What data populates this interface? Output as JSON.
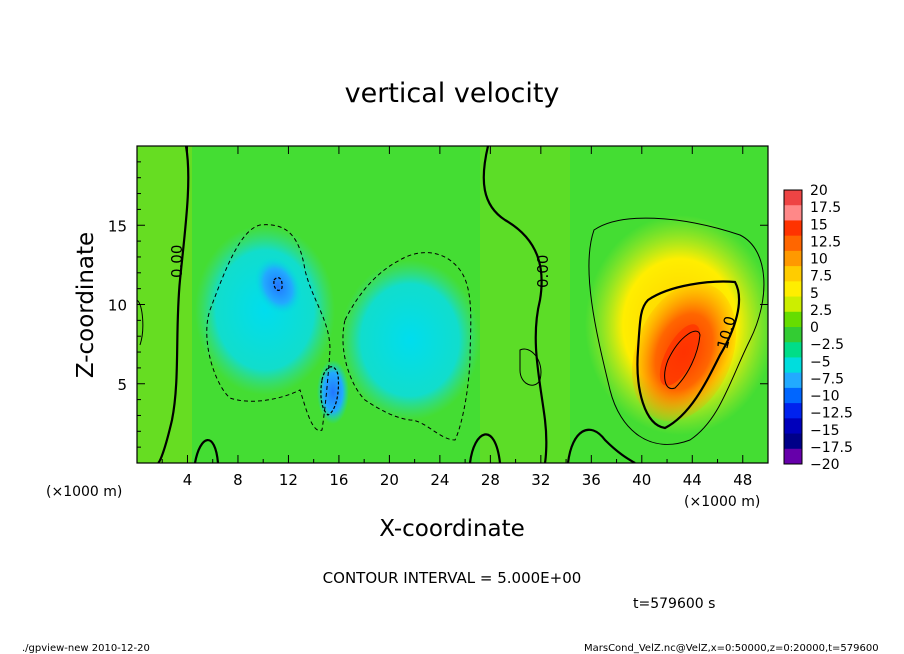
{
  "chart_data": {
    "type": "heatmap",
    "title": "vertical velocity",
    "xlabel": "X-coordinate",
    "ylabel": "Z-coordinate",
    "x_units": "(×1000 m)",
    "y_units": "(×1000 m)",
    "xlim": [
      0,
      50
    ],
    "ylim": [
      0,
      20
    ],
    "x_ticks": [
      4,
      8,
      12,
      16,
      20,
      24,
      28,
      32,
      36,
      40,
      44,
      48
    ],
    "y_ticks": [
      5,
      10,
      15
    ],
    "colorbar": {
      "levels": [
        "20",
        "17.5",
        "15",
        "12.5",
        "10",
        "7.5",
        "5",
        "2.5",
        "0",
        "−2.5",
        "−5",
        "−7.5",
        "−10",
        "−12.5",
        "−15",
        "−17.5",
        "−20"
      ],
      "colors": [
        "#ee4444",
        "#ff8888",
        "#ff3300",
        "#ff6600",
        "#ff9900",
        "#ffcc00",
        "#ffee00",
        "#ccee00",
        "#66dd00",
        "#33cc33",
        "#00dd88",
        "#00dddd",
        "#22aaff",
        "#0066ff",
        "#0022ee",
        "#0000bb",
        "#000088",
        "#6600aa"
      ]
    },
    "contour_labels": [
      "0.00",
      "0.00",
      "10.0"
    ],
    "contour_interval_text": "CONTOUR INTERVAL = 5.000E+00",
    "features": [
      {
        "kind": "updraft",
        "x": 42.5,
        "z": 7,
        "peak": 14
      },
      {
        "kind": "downdraft",
        "x": 11,
        "z": 11,
        "peak": -7
      },
      {
        "kind": "downdraft",
        "x": 15,
        "z": 5,
        "peak": -9
      }
    ],
    "time_label": "t=579600 s"
  },
  "footer": {
    "left": "./gpview-new  2010-12-20",
    "right": "MarsCond_VelZ.nc@VelZ,x=0:50000,z=0:20000,t=579600"
  }
}
